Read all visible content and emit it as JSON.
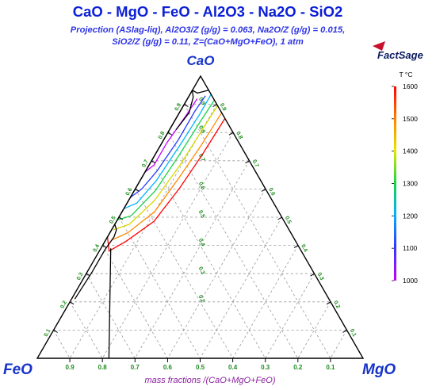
{
  "chart_data": {
    "type": "ternary_phase_diagram",
    "title": "CaO - MgO - FeO - Al2O3 - Na2O - SiO2",
    "subtitle_1": "Projection (ASlag-liq),  Al2O3/Z (g/g)  = 0.063,  Na2O/Z (g/g)  = 0.015,",
    "subtitle_2": "SiO2/Z (g/g)  = 0.11,    Z=(CaO+MgO+FeO), 1 atm",
    "logo_text": "FactSage",
    "apex_labels": {
      "top": "CaO",
      "left": "FeO",
      "right": "MgO"
    },
    "xlabel": "mass fractions /(CaO+MgO+FeO)",
    "tick_values": [
      "0.1",
      "0.2",
      "0.3",
      "0.4",
      "0.5",
      "0.6",
      "0.7",
      "0.8",
      "0.9"
    ],
    "bottom_labels": [
      "0.9",
      "0.8",
      "0.7",
      "0.6",
      "0.5",
      "0.4",
      "0.3",
      "0.2",
      "0.1"
    ],
    "colorbar": {
      "title": "T °C",
      "ticks": [
        "1600",
        "1500",
        "1400",
        "1300",
        "1200",
        "1100",
        "1000"
      ],
      "range": [
        1000,
        1600
      ]
    },
    "boundaries": [
      {
        "name": "boundary-1",
        "points": [
          [
            0.525,
            0.0,
            0.475
          ],
          [
            0.53,
            0.015,
            0.455
          ],
          [
            0.55,
            0.02,
            0.43
          ],
          [
            0.6,
            0.015,
            0.385
          ],
          [
            0.68,
            0.015,
            0.305
          ],
          [
            0.78,
            0.01,
            0.21
          ]
        ]
      },
      {
        "name": "boundary-2",
        "points": [
          [
            0.58,
            0.03,
            0.39
          ],
          [
            0.78,
            0.22,
            0.0
          ]
        ]
      },
      {
        "name": "boundary-3",
        "points": [
          [
            0.6,
            0.0,
            0.4
          ],
          [
            0.2,
            0.0,
            0.8
          ],
          [
            0.05,
            0.0,
            0.95
          ],
          [
            0.04,
            0.02,
            0.94
          ],
          [
            0.0,
            0.05,
            0.95
          ]
        ]
      },
      {
        "name": "boundary-4",
        "points": [
          [
            0.05,
            0.0,
            0.95
          ],
          [
            0.06,
            0.015,
            0.925
          ],
          [
            0.1,
            0.03,
            0.87
          ],
          [
            0.17,
            0.02,
            0.81
          ]
        ]
      }
    ],
    "isotherms": [
      {
        "T": 1000,
        "points": [
          [
            0.34,
            0.0,
            0.66
          ],
          [
            0.3,
            0.015,
            0.685
          ],
          [
            0.22,
            0.015,
            0.765
          ],
          [
            0.12,
            0.025,
            0.855
          ],
          [
            0.05,
            0.03,
            0.92
          ]
        ]
      },
      {
        "T": 1100,
        "points": [
          [
            0.43,
            0.0,
            0.57
          ],
          [
            0.38,
            0.02,
            0.6
          ],
          [
            0.3,
            0.035,
            0.665
          ],
          [
            0.18,
            0.045,
            0.775
          ],
          [
            0.08,
            0.045,
            0.875
          ],
          [
            0.02,
            0.05,
            0.93
          ]
        ]
      },
      {
        "T": 1200,
        "points": [
          [
            0.47,
            0.0,
            0.53
          ],
          [
            0.42,
            0.03,
            0.55
          ],
          [
            0.32,
            0.05,
            0.63
          ],
          [
            0.18,
            0.06,
            0.76
          ],
          [
            0.07,
            0.065,
            0.865
          ],
          [
            0.0,
            0.065,
            0.935
          ]
        ]
      },
      {
        "T": 1300,
        "points": [
          [
            0.51,
            0.0,
            0.49
          ],
          [
            0.46,
            0.035,
            0.505
          ],
          [
            0.34,
            0.065,
            0.595
          ],
          [
            0.2,
            0.075,
            0.725
          ],
          [
            0.08,
            0.08,
            0.84
          ],
          [
            0.0,
            0.085,
            0.915
          ]
        ]
      },
      {
        "T": 1400,
        "points": [
          [
            0.54,
            0.005,
            0.455
          ],
          [
            0.48,
            0.045,
            0.475
          ],
          [
            0.36,
            0.08,
            0.56
          ],
          [
            0.22,
            0.095,
            0.685
          ],
          [
            0.1,
            0.1,
            0.8
          ],
          [
            0.0,
            0.105,
            0.895
          ]
        ]
      },
      {
        "T": 1500,
        "points": [
          [
            0.56,
            0.02,
            0.42
          ],
          [
            0.5,
            0.055,
            0.445
          ],
          [
            0.38,
            0.1,
            0.52
          ],
          [
            0.24,
            0.115,
            0.645
          ],
          [
            0.12,
            0.125,
            0.755
          ],
          [
            0.0,
            0.13,
            0.87
          ]
        ]
      },
      {
        "T": 1600,
        "points": [
          [
            0.57,
            0.0,
            0.43
          ],
          [
            0.59,
            0.03,
            0.38
          ],
          [
            0.52,
            0.065,
            0.415
          ],
          [
            0.4,
            0.115,
            0.485
          ],
          [
            0.26,
            0.135,
            0.605
          ],
          [
            0.13,
            0.145,
            0.725
          ],
          [
            0.0,
            0.15,
            0.85
          ]
        ]
      }
    ]
  }
}
